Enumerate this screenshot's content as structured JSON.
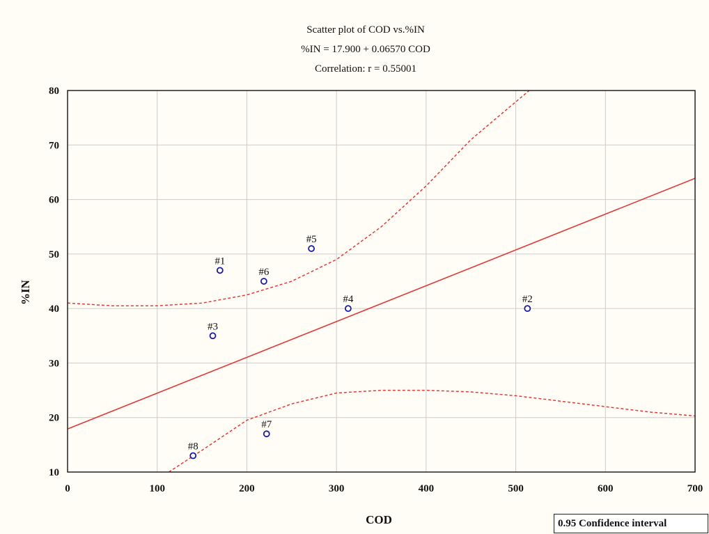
{
  "chart_data": {
    "type": "scatter",
    "title": "Scatter plot of COD vs.%IN",
    "subtitle_lines": [
      "%IN = 17.900 + 0.06570 COD",
      "Correlation: r = 0.55001"
    ],
    "xlabel": "COD",
    "ylabel": "%IN",
    "xlim": [
      0,
      700
    ],
    "ylim": [
      10,
      80
    ],
    "x_ticks": [
      0,
      100,
      200,
      300,
      400,
      500,
      600,
      700
    ],
    "y_ticks": [
      10,
      20,
      30,
      40,
      50,
      60,
      70,
      80
    ],
    "grid": true,
    "points": [
      {
        "label": "#1",
        "x": 170,
        "y": 47
      },
      {
        "label": "#2",
        "x": 513,
        "y": 40
      },
      {
        "label": "#3",
        "x": 162,
        "y": 35
      },
      {
        "label": "#4",
        "x": 313,
        "y": 40
      },
      {
        "label": "#5",
        "x": 272,
        "y": 51
      },
      {
        "label": "#6",
        "x": 219,
        "y": 45
      },
      {
        "label": "#7",
        "x": 222,
        "y": 17
      },
      {
        "label": "#8",
        "x": 140,
        "y": 13
      }
    ],
    "regression": {
      "intercept": 17.9,
      "slope": 0.0657
    },
    "confidence_upper": [
      [
        0,
        41
      ],
      [
        50,
        40.5
      ],
      [
        100,
        40.5
      ],
      [
        150,
        41
      ],
      [
        200,
        42.5
      ],
      [
        250,
        45
      ],
      [
        300,
        49
      ],
      [
        350,
        55
      ],
      [
        400,
        62.5
      ],
      [
        450,
        71
      ],
      [
        515,
        80
      ]
    ],
    "confidence_lower": [
      [
        113,
        10
      ],
      [
        150,
        14
      ],
      [
        200,
        19.5
      ],
      [
        250,
        22.5
      ],
      [
        300,
        24.5
      ],
      [
        350,
        25
      ],
      [
        400,
        25
      ],
      [
        450,
        24.7
      ],
      [
        500,
        24
      ],
      [
        550,
        23
      ],
      [
        600,
        22
      ],
      [
        650,
        21
      ],
      [
        700,
        20.3
      ]
    ],
    "legend": "0.95 Confidence interval",
    "colors": {
      "points": "#1a1aa8",
      "regression": "#e03a3a",
      "confidence": "#e03a3a",
      "grid": "#cccccc"
    }
  }
}
